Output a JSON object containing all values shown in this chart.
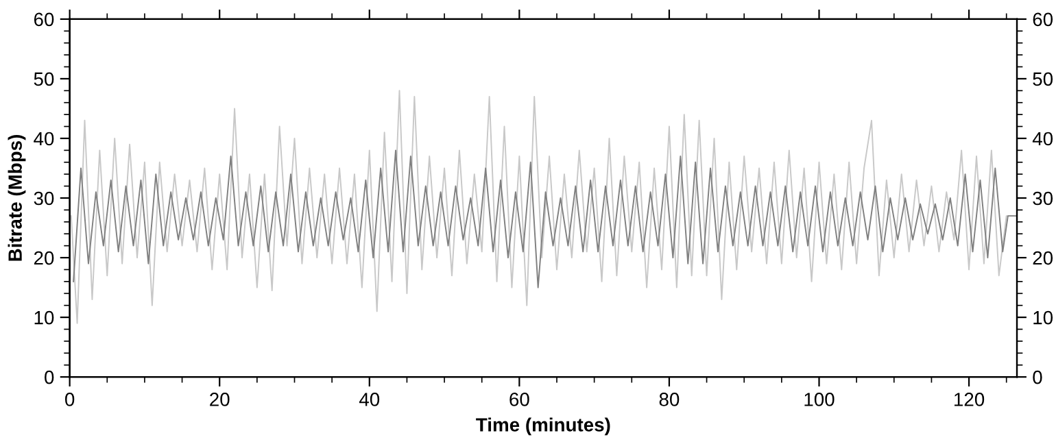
{
  "chart_data": {
    "type": "line",
    "xlabel": "Time (minutes)",
    "ylabel": "Bitrate (Mbps)",
    "xlim": [
      0,
      126.4
    ],
    "xticks": [
      0,
      {
        "value": 5,
        "label": null
      },
      {
        "value": 10,
        "label": null
      },
      {
        "value": 15,
        "label": null
      },
      20,
      {
        "value": 25,
        "label": null
      },
      {
        "value": 30,
        "label": null
      },
      {
        "value": 35,
        "label": null
      },
      40,
      {
        "value": 45,
        "label": null
      },
      {
        "value": 50,
        "label": null
      },
      {
        "value": 55,
        "label": null
      },
      60,
      {
        "value": 65,
        "label": null
      },
      {
        "value": 70,
        "label": null
      },
      {
        "value": 75,
        "label": null
      },
      80,
      {
        "value": 85,
        "label": null
      },
      {
        "value": 90,
        "label": null
      },
      {
        "value": 95,
        "label": null
      },
      100,
      {
        "value": 105,
        "label": null
      },
      {
        "value": 110,
        "label": null
      },
      {
        "value": 115,
        "label": null
      },
      120,
      {
        "value": 125,
        "label": null
      }
    ],
    "ylim": [
      0,
      60
    ],
    "yticks": [
      0,
      {
        "value": 2,
        "label": null
      },
      {
        "value": 4,
        "label": null
      },
      {
        "value": 6,
        "label": null
      },
      {
        "value": 8,
        "label": null
      },
      10,
      {
        "value": 12,
        "label": null
      },
      {
        "value": 14,
        "label": null
      },
      {
        "value": 16,
        "label": null
      },
      {
        "value": 18,
        "label": null
      },
      20,
      {
        "value": 22,
        "label": null
      },
      {
        "value": 24,
        "label": null
      },
      {
        "value": 26,
        "label": null
      },
      {
        "value": 28,
        "label": null
      },
      30,
      {
        "value": 32,
        "label": null
      },
      {
        "value": 34,
        "label": null
      },
      {
        "value": 36,
        "label": null
      },
      {
        "value": 38,
        "label": null
      },
      40,
      {
        "value": 42,
        "label": null
      },
      {
        "value": 44,
        "label": null
      },
      {
        "value": 46,
        "label": null
      },
      {
        "value": 48,
        "label": null
      },
      50,
      {
        "value": 52,
        "label": null
      },
      {
        "value": 54,
        "label": null
      },
      {
        "value": 56,
        "label": null
      },
      {
        "value": 58,
        "label": null
      },
      60
    ],
    "y2lim": [
      0,
      60
    ],
    "y2ticks": [
      0,
      {
        "value": 2,
        "label": null
      },
      {
        "value": 4,
        "label": null
      },
      {
        "value": 6,
        "label": null
      },
      {
        "value": 8,
        "label": null
      },
      10,
      {
        "value": 12,
        "label": null
      },
      {
        "value": 14,
        "label": null
      },
      {
        "value": 16,
        "label": null
      },
      {
        "value": 18,
        "label": null
      },
      20,
      {
        "value": 22,
        "label": null
      },
      {
        "value": 24,
        "label": null
      },
      {
        "value": 26,
        "label": null
      },
      {
        "value": 28,
        "label": null
      },
      30,
      {
        "value": 32,
        "label": null
      },
      {
        "value": 34,
        "label": null
      },
      {
        "value": 36,
        "label": null
      },
      {
        "value": 38,
        "label": null
      },
      40,
      {
        "value": 42,
        "label": null
      },
      {
        "value": 44,
        "label": null
      },
      {
        "value": 46,
        "label": null
      },
      {
        "value": 48,
        "label": null
      },
      50,
      {
        "value": 52,
        "label": null
      },
      {
        "value": 54,
        "label": null
      },
      {
        "value": 56,
        "label": null
      },
      {
        "value": 58,
        "label": null
      },
      60
    ],
    "grid": false,
    "marker": "none",
    "line_style": "solid",
    "series": [
      {
        "color": "#c8c8c8",
        "x": [
          0.2,
          1,
          2,
          3,
          4,
          5,
          6,
          7,
          8,
          9,
          10,
          11,
          12,
          13,
          14,
          15,
          16,
          17,
          18,
          19,
          20,
          21,
          22,
          23,
          24,
          25,
          26,
          27,
          28,
          29,
          30,
          31,
          32,
          33,
          34,
          35,
          36,
          37,
          38,
          39,
          40,
          41,
          42,
          43,
          44,
          45,
          46,
          47,
          48,
          49,
          50,
          51,
          52,
          53,
          54,
          55,
          56,
          57,
          58,
          59,
          60,
          61,
          62,
          63,
          64,
          65,
          66,
          67,
          68,
          69,
          70,
          71,
          72,
          73,
          74,
          75,
          76,
          77,
          78,
          79,
          80,
          81,
          82,
          83,
          84,
          85,
          86,
          87,
          88,
          89,
          90,
          91,
          92,
          93,
          94,
          95,
          96,
          97,
          98,
          99,
          100,
          101,
          102,
          103,
          104,
          105,
          106,
          107,
          108,
          109,
          110,
          111,
          112,
          113,
          114,
          115,
          116,
          117,
          118,
          119,
          120,
          121,
          122,
          123,
          124,
          125,
          126
        ],
        "values": [
          27,
          9,
          43,
          13,
          38,
          17,
          40,
          19,
          39,
          20,
          36,
          12,
          36,
          21,
          34,
          22,
          33,
          21,
          35,
          18,
          34,
          18,
          45,
          20,
          34,
          15,
          34,
          14.5,
          42,
          22,
          40,
          19,
          35,
          20,
          34,
          19,
          35,
          19,
          34,
          15,
          38,
          11,
          41,
          16,
          48,
          14,
          47,
          18,
          37,
          20,
          35,
          17,
          38,
          19,
          34,
          21,
          47,
          16,
          42,
          15,
          37,
          12,
          47,
          20,
          37,
          18,
          34,
          20,
          38,
          21,
          35,
          16,
          40,
          17,
          37,
          21,
          36,
          15,
          35,
          18,
          42,
          15,
          44,
          17,
          43,
          17,
          40,
          13,
          36,
          18,
          37,
          21,
          35,
          19,
          36,
          19,
          38,
          20,
          35,
          16,
          36,
          19,
          34,
          18,
          36,
          19,
          35,
          43,
          17,
          33,
          20,
          34,
          21,
          33,
          22,
          32,
          21,
          31,
          23,
          38,
          18,
          37,
          19,
          38,
          17,
          27,
          27
        ]
      },
      {
        "color": "#808080",
        "x": [
          0.5,
          1.5,
          2.5,
          3.5,
          4.5,
          5.5,
          6.5,
          7.5,
          8.5,
          9.5,
          10.5,
          11.5,
          12.5,
          13.5,
          14.5,
          15.5,
          16.5,
          17.5,
          18.5,
          19.5,
          20.5,
          21.5,
          22.5,
          23.5,
          24.5,
          25.5,
          26.5,
          27.5,
          28.5,
          29.5,
          30.5,
          31.5,
          32.5,
          33.5,
          34.5,
          35.5,
          36.5,
          37.5,
          38.5,
          39.5,
          40.5,
          41.5,
          42.5,
          43.5,
          44.5,
          45.5,
          46.5,
          47.5,
          48.5,
          49.5,
          50.5,
          51.5,
          52.5,
          53.5,
          54.5,
          55.5,
          56.5,
          57.5,
          58.5,
          59.5,
          60.5,
          61.5,
          62.5,
          63.5,
          64.5,
          65.5,
          66.5,
          67.5,
          68.5,
          69.5,
          70.5,
          71.5,
          72.5,
          73.5,
          74.5,
          75.5,
          76.5,
          77.5,
          78.5,
          79.5,
          80.5,
          81.5,
          82.5,
          83.5,
          84.5,
          85.5,
          86.5,
          87.5,
          88.5,
          89.5,
          90.5,
          91.5,
          92.5,
          93.5,
          94.5,
          95.5,
          96.5,
          97.5,
          98.5,
          99.5,
          100.5,
          101.5,
          102.5,
          103.5,
          104.5,
          105.5,
          106.5,
          107.5,
          108.5,
          109.5,
          110.5,
          111.5,
          112.5,
          113.5,
          114.5,
          115.5,
          116.5,
          117.5,
          118.5,
          119.5,
          120.5,
          121.5,
          122.5,
          123.5,
          124.5,
          125.2,
          126.3
        ],
        "values": [
          16,
          35,
          19,
          31,
          22,
          33,
          21,
          32,
          22,
          33,
          19,
          34,
          22,
          31,
          23,
          30,
          23,
          31,
          22,
          30,
          23,
          37,
          22,
          31,
          22,
          32,
          21,
          31,
          22,
          34,
          21,
          31,
          22,
          30,
          22,
          31,
          23,
          30,
          21,
          33,
          20,
          35,
          21,
          38,
          21,
          37,
          22,
          32,
          22,
          31,
          22,
          32,
          23,
          30,
          22,
          35,
          21,
          33,
          20,
          31,
          21,
          36,
          15,
          31,
          22,
          30,
          22,
          32,
          21,
          33,
          21,
          32,
          22,
          33,
          22,
          32,
          21,
          31,
          22,
          34,
          20,
          37,
          19,
          36,
          19,
          35,
          21,
          32,
          22,
          31,
          22,
          32,
          22,
          31,
          22,
          32,
          21,
          31,
          22,
          32,
          21,
          31,
          22,
          30,
          22,
          31,
          23,
          32,
          21,
          30,
          23,
          30,
          23,
          29,
          24,
          29,
          23,
          30,
          22,
          34,
          21,
          33,
          20,
          35,
          21,
          27,
          27
        ]
      }
    ]
  }
}
